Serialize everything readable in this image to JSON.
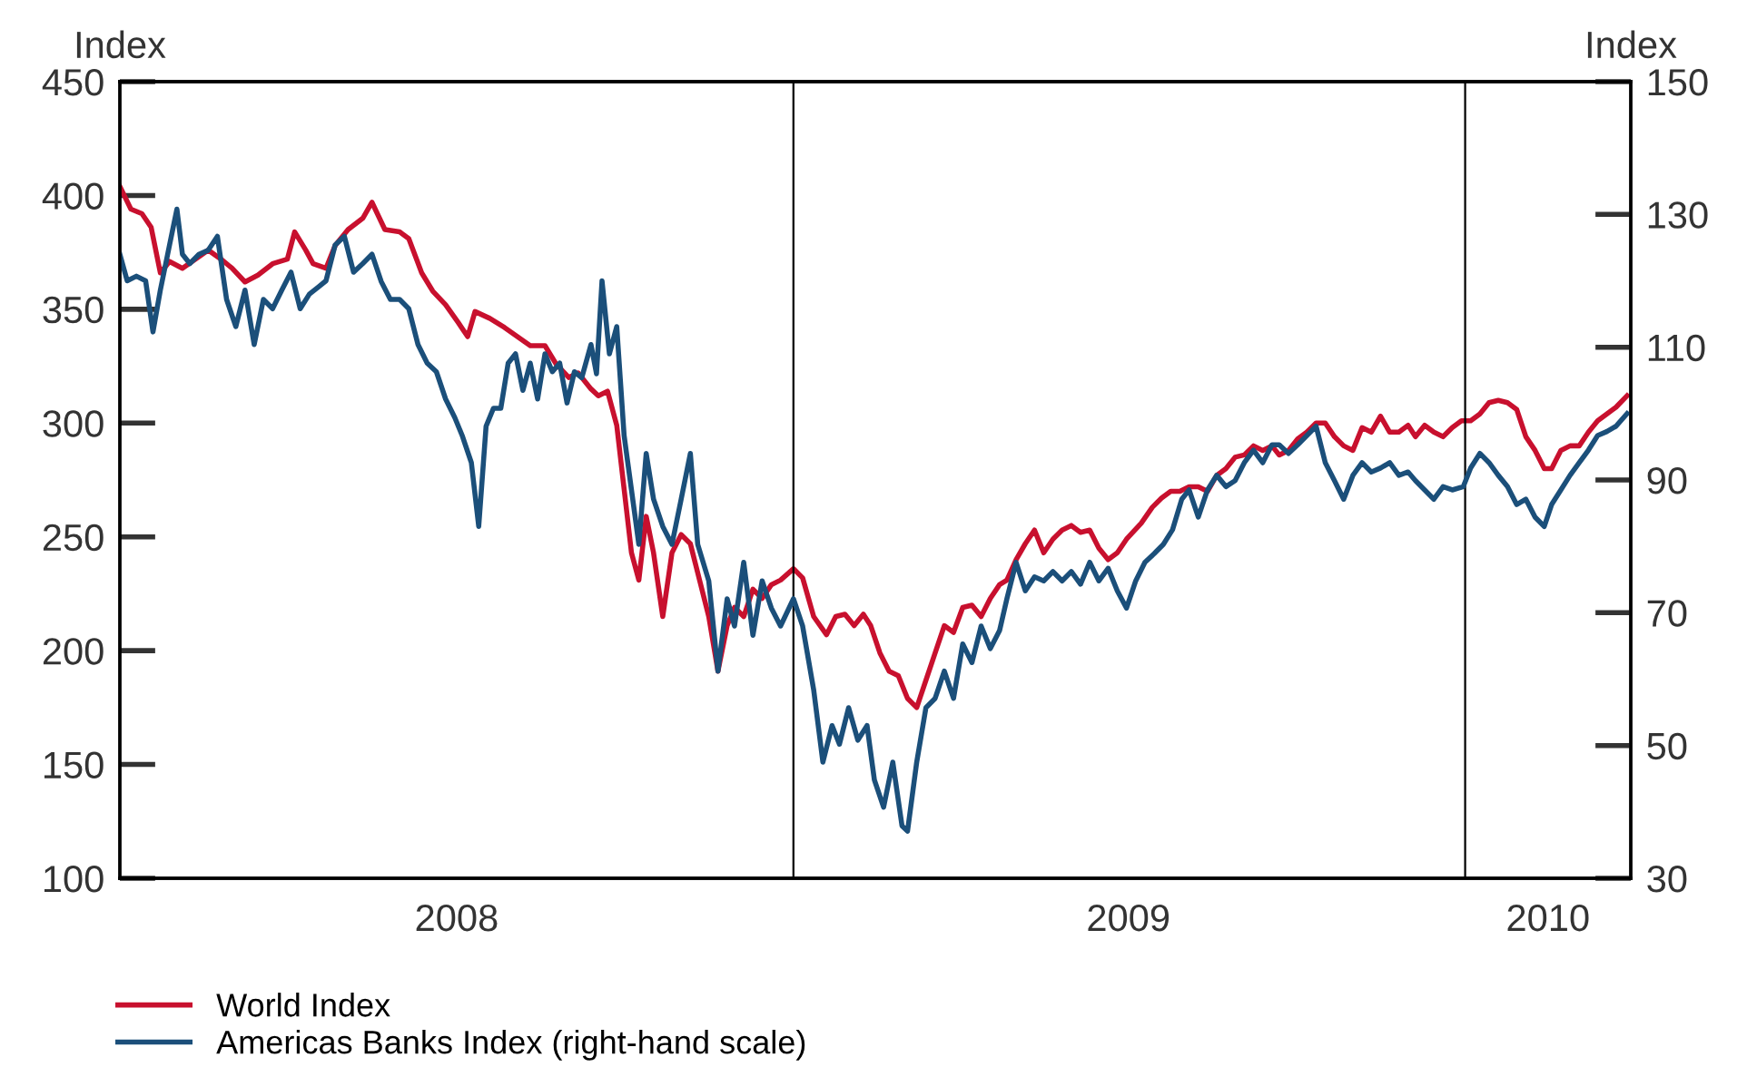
{
  "chart_data": {
    "type": "line",
    "ylabel": "Index",
    "y2label": "Index",
    "xlim": [
      "2008-01-01",
      "2010-04-01"
    ],
    "xticks": [
      {
        "value": "2008-07-02",
        "label": "2008"
      },
      {
        "value": "2009-07-02",
        "label": "2009"
      },
      {
        "value": "2010-02-15",
        "label": "2010"
      }
    ],
    "ylim": [
      100,
      450
    ],
    "yticks": [
      100,
      150,
      200,
      250,
      300,
      350,
      400,
      450
    ],
    "y2lim": [
      30,
      150
    ],
    "y2ticks": [
      30,
      50,
      70,
      90,
      110,
      130,
      150
    ],
    "ref_lines": [
      {
        "axis": "x",
        "value": "2009-01-01",
        "color": "#000000"
      },
      {
        "axis": "x",
        "value": "2010-01-01",
        "color": "#000000"
      }
    ],
    "legend": "bottom",
    "grid": false,
    "marker": "none",
    "line_style": "solid",
    "series": [
      {
        "name": "World Index",
        "color": "#c8102e",
        "x": [
          "2008-01-01",
          "2008-01-07",
          "2008-01-13",
          "2008-01-18",
          "2008-01-23",
          "2008-01-28",
          "2008-02-04",
          "2008-02-11",
          "2008-02-18",
          "2008-02-25",
          "2008-03-02",
          "2008-03-09",
          "2008-03-16",
          "2008-03-24",
          "2008-04-01",
          "2008-04-05",
          "2008-04-11",
          "2008-04-15",
          "2008-04-22",
          "2008-04-27",
          "2008-05-04",
          "2008-05-12",
          "2008-05-17",
          "2008-05-24",
          "2008-06-01",
          "2008-06-06",
          "2008-06-13",
          "2008-06-19",
          "2008-06-26",
          "2008-07-03",
          "2008-07-08",
          "2008-07-12",
          "2008-07-20",
          "2008-07-28",
          "2008-08-04",
          "2008-08-11",
          "2008-08-19",
          "2008-08-25",
          "2008-09-01",
          "2008-09-06",
          "2008-09-13",
          "2008-09-17",
          "2008-09-22",
          "2008-09-27",
          "2008-10-01",
          "2008-10-05",
          "2008-10-09",
          "2008-10-13",
          "2008-10-17",
          "2008-10-22",
          "2008-10-27",
          "2008-11-01",
          "2008-11-06",
          "2008-11-11",
          "2008-11-16",
          "2008-11-21",
          "2008-11-26",
          "2008-11-30",
          "2008-12-05",
          "2008-12-10",
          "2008-12-15",
          "2008-12-20",
          "2008-12-25",
          "2009-01-01",
          "2009-01-06",
          "2009-01-12",
          "2009-01-19",
          "2009-01-24",
          "2009-01-29",
          "2009-02-03",
          "2009-02-08",
          "2009-02-12",
          "2009-02-17",
          "2009-02-22",
          "2009-02-27",
          "2009-03-04",
          "2009-03-09",
          "2009-03-14",
          "2009-03-19",
          "2009-03-24",
          "2009-03-29",
          "2009-04-03",
          "2009-04-08",
          "2009-04-13",
          "2009-04-18",
          "2009-04-23",
          "2009-04-27",
          "2009-05-02",
          "2009-05-07",
          "2009-05-12",
          "2009-05-17",
          "2009-05-22",
          "2009-05-27",
          "2009-06-01",
          "2009-06-06",
          "2009-06-11",
          "2009-06-16",
          "2009-06-21",
          "2009-06-26",
          "2009-07-01",
          "2009-07-09",
          "2009-07-15",
          "2009-07-20",
          "2009-07-25",
          "2009-07-30",
          "2009-08-04",
          "2009-08-09",
          "2009-08-14",
          "2009-08-19",
          "2009-08-24",
          "2009-08-29",
          "2009-09-03",
          "2009-09-08",
          "2009-09-13",
          "2009-09-18",
          "2009-09-22",
          "2009-09-27",
          "2009-10-02",
          "2009-10-07",
          "2009-10-12",
          "2009-10-17",
          "2009-10-22",
          "2009-10-27",
          "2009-11-01",
          "2009-11-06",
          "2009-11-11",
          "2009-11-16",
          "2009-11-21",
          "2009-11-26",
          "2009-12-01",
          "2009-12-05",
          "2009-12-10",
          "2009-12-15",
          "2009-12-20",
          "2009-12-25",
          "2009-12-30",
          "2010-01-04",
          "2010-01-09",
          "2010-01-14",
          "2010-01-19",
          "2010-01-24",
          "2010-01-29",
          "2010-02-03",
          "2010-02-08",
          "2010-02-13",
          "2010-02-17",
          "2010-02-22",
          "2010-02-27",
          "2010-03-04",
          "2010-03-09",
          "2010-03-14",
          "2010-03-19",
          "2010-03-24",
          "2010-03-30"
        ],
        "values": [
          404,
          394,
          392,
          386,
          366,
          371,
          368,
          372,
          376,
          372,
          368,
          362,
          365,
          370,
          372,
          384,
          376,
          370,
          368,
          378,
          385,
          390,
          397,
          385,
          384,
          381,
          366,
          358,
          352,
          344,
          338,
          349,
          346,
          342,
          338,
          334,
          334,
          326,
          320,
          322,
          315,
          312,
          314,
          299,
          271,
          243,
          231,
          259,
          243,
          215,
          243,
          251,
          247,
          231,
          215,
          191,
          211,
          219,
          215,
          227,
          223,
          229,
          231,
          236,
          232,
          215,
          207,
          215,
          216,
          211,
          216,
          211,
          199,
          191,
          189,
          179,
          175,
          187,
          199,
          211,
          208,
          219,
          220,
          215,
          223,
          229,
          231,
          240,
          247,
          253,
          243,
          249,
          253,
          255,
          252,
          253,
          245,
          240,
          243,
          249,
          256,
          263,
          267,
          270,
          270,
          272,
          272,
          270,
          277,
          280,
          285,
          286,
          290,
          288,
          290,
          286,
          288,
          293,
          296,
          300,
          300,
          294,
          290,
          288,
          298,
          296,
          303,
          296,
          296,
          299,
          294,
          299,
          296,
          294,
          298,
          301,
          301,
          304,
          309,
          310,
          309,
          306,
          294,
          288,
          280,
          280,
          288,
          290,
          290,
          296,
          301,
          304,
          307,
          312
        ]
      },
      {
        "name": "Americas Banks Index (right-hand scale)",
        "color": "#1b4f7a",
        "axis": "y2",
        "x": [
          "2008-01-01",
          "2008-01-05",
          "2008-01-10",
          "2008-01-15",
          "2008-01-19",
          "2008-01-23",
          "2008-01-28",
          "2008-02-01",
          "2008-02-04",
          "2008-02-08",
          "2008-02-13",
          "2008-02-18",
          "2008-02-23",
          "2008-02-28",
          "2008-03-04",
          "2008-03-09",
          "2008-03-14",
          "2008-03-19",
          "2008-03-24",
          "2008-03-29",
          "2008-04-03",
          "2008-04-08",
          "2008-04-13",
          "2008-04-18",
          "2008-04-22",
          "2008-04-27",
          "2008-05-02",
          "2008-05-07",
          "2008-05-12",
          "2008-05-17",
          "2008-05-22",
          "2008-05-27",
          "2008-06-01",
          "2008-06-06",
          "2008-06-11",
          "2008-06-16",
          "2008-06-21",
          "2008-06-26",
          "2008-07-01",
          "2008-07-05",
          "2008-07-10",
          "2008-07-14",
          "2008-07-18",
          "2008-07-22",
          "2008-07-26",
          "2008-07-30",
          "2008-08-03",
          "2008-08-07",
          "2008-08-11",
          "2008-08-15",
          "2008-08-19",
          "2008-08-23",
          "2008-08-27",
          "2008-08-31",
          "2008-09-04",
          "2008-09-08",
          "2008-09-13",
          "2008-09-16",
          "2008-09-19",
          "2008-09-23",
          "2008-09-27",
          "2008-10-01",
          "2008-10-05",
          "2008-10-09",
          "2008-10-13",
          "2008-10-17",
          "2008-10-22",
          "2008-10-27",
          "2008-11-01",
          "2008-11-06",
          "2008-11-10",
          "2008-11-16",
          "2008-11-21",
          "2008-11-26",
          "2008-11-30",
          "2008-12-05",
          "2008-12-10",
          "2008-12-15",
          "2008-12-20",
          "2008-12-25",
          "2009-01-01",
          "2009-01-06",
          "2009-01-12",
          "2009-01-17",
          "2009-01-22",
          "2009-01-26",
          "2009-01-31",
          "2009-02-05",
          "2009-02-10",
          "2009-02-14",
          "2009-02-19",
          "2009-02-24",
          "2009-03-01",
          "2009-03-04",
          "2009-03-09",
          "2009-03-14",
          "2009-03-19",
          "2009-03-24",
          "2009-03-29",
          "2009-04-03",
          "2009-04-08",
          "2009-04-13",
          "2009-04-18",
          "2009-04-23",
          "2009-04-27",
          "2009-05-02",
          "2009-05-07",
          "2009-05-12",
          "2009-05-17",
          "2009-05-22",
          "2009-05-27",
          "2009-06-01",
          "2009-06-06",
          "2009-06-11",
          "2009-06-16",
          "2009-06-21",
          "2009-06-26",
          "2009-07-01",
          "2009-07-06",
          "2009-07-11",
          "2009-07-16",
          "2009-07-21",
          "2009-07-26",
          "2009-07-31",
          "2009-08-04",
          "2009-08-09",
          "2009-08-14",
          "2009-08-19",
          "2009-08-24",
          "2009-08-29",
          "2009-09-03",
          "2009-09-08",
          "2009-09-13",
          "2009-09-18",
          "2009-09-22",
          "2009-09-27",
          "2009-10-02",
          "2009-10-07",
          "2009-10-12",
          "2009-10-17",
          "2009-10-22",
          "2009-10-27",
          "2009-11-01",
          "2009-11-06",
          "2009-11-11",
          "2009-11-16",
          "2009-11-21",
          "2009-11-26",
          "2009-12-01",
          "2009-12-05",
          "2009-12-10",
          "2009-12-15",
          "2009-12-20",
          "2009-12-25",
          "2009-12-31",
          "2010-01-04",
          "2010-01-09",
          "2010-01-14",
          "2010-01-19",
          "2010-01-24",
          "2010-01-29",
          "2010-02-03",
          "2010-02-08",
          "2010-02-13",
          "2010-02-17",
          "2010-02-22",
          "2010-02-27",
          "2010-03-04",
          "2010-03-09",
          "2010-03-14",
          "2010-03-19",
          "2010-03-24",
          "2010-03-30"
        ],
        "values": [
          124.0,
          120.0,
          120.7,
          120.0,
          112.3,
          118.6,
          125.4,
          130.8,
          124.0,
          122.6,
          124.0,
          124.6,
          126.7,
          117.2,
          113.1,
          118.6,
          110.4,
          117.2,
          115.8,
          118.6,
          121.3,
          115.8,
          118.0,
          119.1,
          120.0,
          125.4,
          126.7,
          121.3,
          122.6,
          124.0,
          119.9,
          117.2,
          117.2,
          115.8,
          110.4,
          107.6,
          106.3,
          102.2,
          99.4,
          96.7,
          92.6,
          83.0,
          98.1,
          100.8,
          100.8,
          107.6,
          109.0,
          103.5,
          107.6,
          102.2,
          109.0,
          106.3,
          107.6,
          101.6,
          106.3,
          105.4,
          110.4,
          106.0,
          120.0,
          109.0,
          113.1,
          96.7,
          88.5,
          80.3,
          94.0,
          87.1,
          83.0,
          80.3,
          87.1,
          94.0,
          80.3,
          74.8,
          61.2,
          72.1,
          68.0,
          77.6,
          66.6,
          74.8,
          70.7,
          68.0,
          72.1,
          68.0,
          58.4,
          47.5,
          53.0,
          50.2,
          55.7,
          50.8,
          53.0,
          44.8,
          40.7,
          47.5,
          37.9,
          37.1,
          47.5,
          55.7,
          57.1,
          61.2,
          57.1,
          65.3,
          62.5,
          68.0,
          64.6,
          67.3,
          72.1,
          77.6,
          73.3,
          75.4,
          74.8,
          76.2,
          74.8,
          76.2,
          74.3,
          77.6,
          74.8,
          76.7,
          73.3,
          70.7,
          74.8,
          77.6,
          78.9,
          80.3,
          82.5,
          87.1,
          88.5,
          84.4,
          88.5,
          90.7,
          89.0,
          89.9,
          92.6,
          94.5,
          92.6,
          95.3,
          95.3,
          94.0,
          95.3,
          96.7,
          98.1,
          92.6,
          89.9,
          87.1,
          90.7,
          92.6,
          91.2,
          91.8,
          92.6,
          90.7,
          91.2,
          89.9,
          88.5,
          87.1,
          89.0,
          88.5,
          89.0,
          91.8,
          94.0,
          92.6,
          90.7,
          89.0,
          86.3,
          87.1,
          84.4,
          83.0,
          86.3,
          88.5,
          90.7,
          92.6,
          94.5,
          96.7,
          97.3,
          98.1,
          100.0
        ]
      }
    ]
  }
}
